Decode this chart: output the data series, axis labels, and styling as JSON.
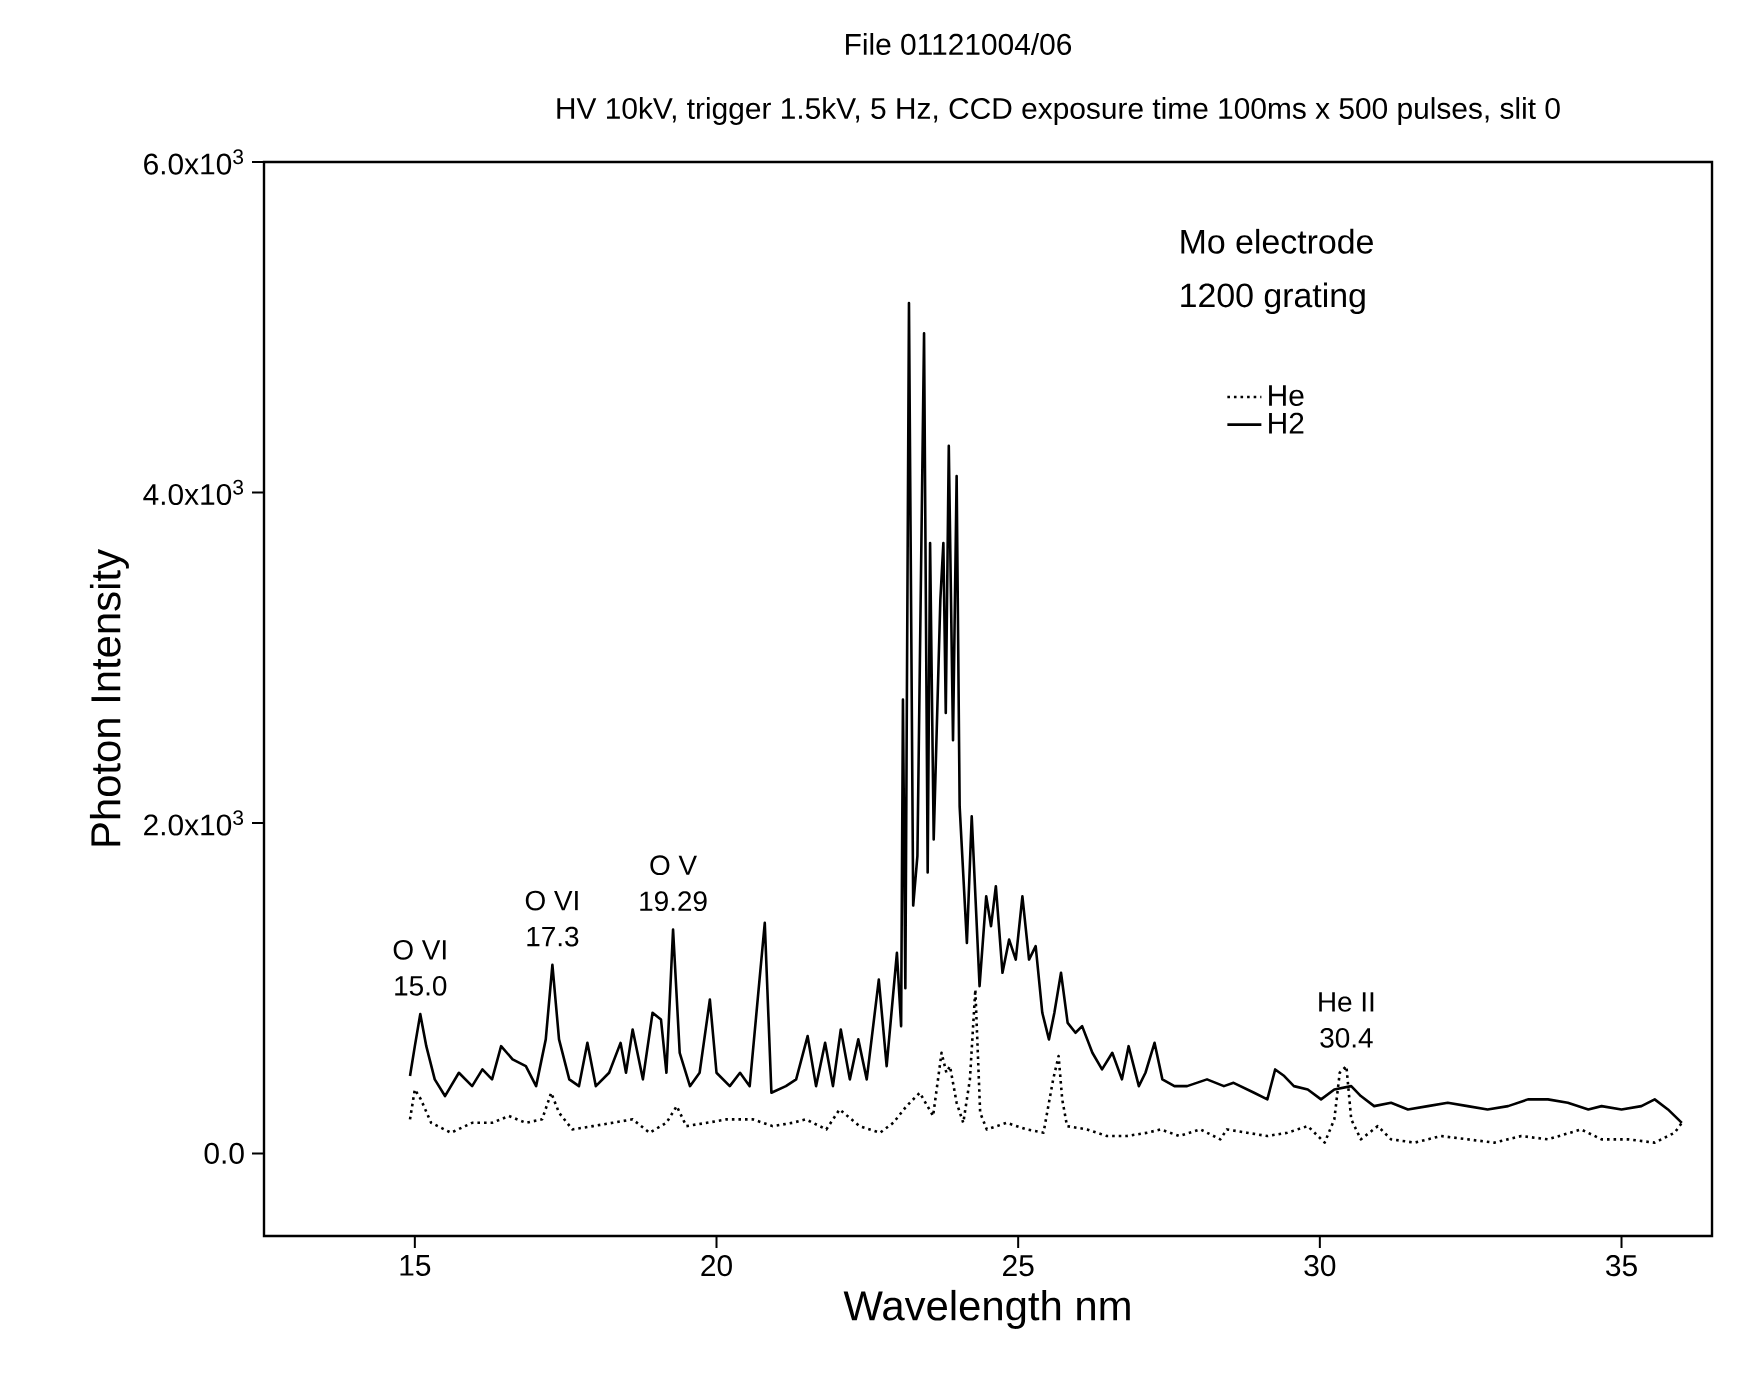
{
  "chart_data": {
    "type": "line",
    "title": "File 01121004/06",
    "subtitle": "HV 10kV, trigger 1.5kV, 5 Hz, CCD exposure time 100ms x 500 pulses, slit 0",
    "xlabel": "Wavelength nm",
    "ylabel": "Photon Intensity",
    "xlim": [
      12.5,
      36.5
    ],
    "xticks": [
      15,
      20,
      25,
      30,
      35
    ],
    "ylim": [
      -500,
      6000
    ],
    "yticks": [
      {
        "value": 0,
        "label": "0.0"
      },
      {
        "value": 2000,
        "label": "2.0x10$^{3}$"
      },
      {
        "value": 4000,
        "label": "4.0x10$^{3}$"
      },
      {
        "value": 6000,
        "label": "6.0x10$^{3}$"
      }
    ],
    "legend": "top right",
    "grid": false,
    "series": [
      {
        "name": "He",
        "color": "#000000",
        "line_style": "dotted",
        "x": [
          14.92,
          15.0,
          15.1,
          15.27,
          15.6,
          15.95,
          16.28,
          16.56,
          16.84,
          17.11,
          17.26,
          17.39,
          17.61,
          17.95,
          18.28,
          18.61,
          18.89,
          19.17,
          19.34,
          19.5,
          19.84,
          20.17,
          20.39,
          20.6,
          20.93,
          21.26,
          21.48,
          21.82,
          22.04,
          22.37,
          22.71,
          22.93,
          23.15,
          23.37,
          23.59,
          23.73,
          23.81,
          23.87,
          23.98,
          24.09,
          24.2,
          24.29,
          24.37,
          24.48,
          24.81,
          25.14,
          25.42,
          25.58,
          25.67,
          25.73,
          25.81,
          26.14,
          26.47,
          26.8,
          27.14,
          27.36,
          27.67,
          28.02,
          28.35,
          28.46,
          28.79,
          29.13,
          29.46,
          29.8,
          30.08,
          30.24,
          30.33,
          30.44,
          30.52,
          30.68,
          30.96,
          31.18,
          31.57,
          32.01,
          32.45,
          32.89,
          33.34,
          33.78,
          34.33,
          34.67,
          35.11,
          35.55,
          35.88,
          36.0
        ],
        "values": [
          206,
          387,
          327,
          185,
          125,
          185,
          185,
          226,
          185,
          206,
          367,
          246,
          145,
          165,
          185,
          206,
          125,
          185,
          286,
          165,
          185,
          206,
          206,
          206,
          165,
          185,
          206,
          145,
          266,
          165,
          125,
          185,
          286,
          367,
          226,
          609,
          488,
          528,
          306,
          185,
          448,
          992,
          246,
          145,
          185,
          145,
          125,
          448,
          589,
          327,
          165,
          145,
          105,
          105,
          125,
          145,
          105,
          145,
          85,
          145,
          125,
          105,
          125,
          165,
          65,
          206,
          488,
          528,
          206,
          85,
          165,
          85,
          65,
          105,
          85,
          65,
          105,
          85,
          145,
          85,
          85,
          65,
          125,
          185
        ]
      },
      {
        "name": "H2",
        "color": "#000000",
        "line_style": "solid",
        "x": [
          14.92,
          15.0,
          15.09,
          15.19,
          15.33,
          15.5,
          15.73,
          15.95,
          16.12,
          16.28,
          16.43,
          16.62,
          16.84,
          17.01,
          17.17,
          17.28,
          17.39,
          17.56,
          17.72,
          17.86,
          18.0,
          18.22,
          18.41,
          18.5,
          18.61,
          18.78,
          18.94,
          19.08,
          19.17,
          19.28,
          19.39,
          19.56,
          19.72,
          19.89,
          20.0,
          20.22,
          20.39,
          20.55,
          20.8,
          20.91,
          21.15,
          21.32,
          21.51,
          21.65,
          21.8,
          21.93,
          22.06,
          22.21,
          22.35,
          22.49,
          22.69,
          22.82,
          22.99,
          23.06,
          23.09,
          23.13,
          23.19,
          23.26,
          23.33,
          23.44,
          23.5,
          23.54,
          23.6,
          23.71,
          23.76,
          23.8,
          23.85,
          23.92,
          23.98,
          24.03,
          24.15,
          24.23,
          24.36,
          24.47,
          24.55,
          24.63,
          24.74,
          24.85,
          24.96,
          25.07,
          25.18,
          25.29,
          25.4,
          25.51,
          25.6,
          25.71,
          25.82,
          25.95,
          26.06,
          26.23,
          26.39,
          26.56,
          26.72,
          26.83,
          27.0,
          27.11,
          27.26,
          27.39,
          27.59,
          27.8,
          28.13,
          28.41,
          28.57,
          28.91,
          29.13,
          29.26,
          29.41,
          29.57,
          29.8,
          30.02,
          30.24,
          30.52,
          30.68,
          30.9,
          31.18,
          31.46,
          31.79,
          32.12,
          32.45,
          32.78,
          33.12,
          33.45,
          33.78,
          34.11,
          34.45,
          34.67,
          35.0,
          35.33,
          35.55,
          35.77,
          36.0
        ],
        "values": [
          468,
          649,
          843,
          649,
          448,
          347,
          488,
          407,
          508,
          448,
          649,
          569,
          528,
          407,
          690,
          1141,
          690,
          448,
          407,
          669,
          407,
          488,
          669,
          488,
          750,
          448,
          851,
          810,
          488,
          1355,
          609,
          407,
          488,
          931,
          488,
          407,
          488,
          407,
          1395,
          367,
          407,
          448,
          710,
          407,
          669,
          407,
          750,
          448,
          690,
          448,
          1052,
          528,
          1214,
          770,
          2746,
          1000,
          5146,
          1500,
          1800,
          4964,
          1700,
          3694,
          1900,
          3351,
          3694,
          2666,
          4283,
          2500,
          4100,
          2100,
          1274,
          2040,
          1012,
          1556,
          1375,
          1617,
          1093,
          1294,
          1173,
          1556,
          1173,
          1254,
          851,
          690,
          851,
          1093,
          790,
          730,
          770,
          609,
          508,
          609,
          448,
          649,
          407,
          488,
          669,
          448,
          407,
          407,
          448,
          407,
          427,
          367,
          327,
          508,
          468,
          407,
          387,
          327,
          387,
          407,
          347,
          286,
          306,
          266,
          286,
          306,
          286,
          266,
          286,
          327,
          327,
          306,
          266,
          286,
          266,
          286,
          327,
          266,
          185
        ]
      }
    ],
    "annotations": [
      {
        "text": "O VI",
        "x": 15.09,
        "y": 843
      },
      {
        "text": "15.0",
        "x": 15.09,
        "y": 843
      },
      {
        "text": "O  VI",
        "x": 17.28,
        "y": 1141
      },
      {
        "text": "17.3",
        "x": 17.28,
        "y": 1141
      },
      {
        "text": "O V",
        "x": 19.28,
        "y": 1355
      },
      {
        "text": "19.29",
        "x": 19.28,
        "y": 1355
      },
      {
        "text": "He II",
        "x": 30.44,
        "y": 528
      },
      {
        "text": "30.4",
        "x": 30.44,
        "y": 528
      },
      "Mo electrode",
      "1200 grating"
    ]
  }
}
